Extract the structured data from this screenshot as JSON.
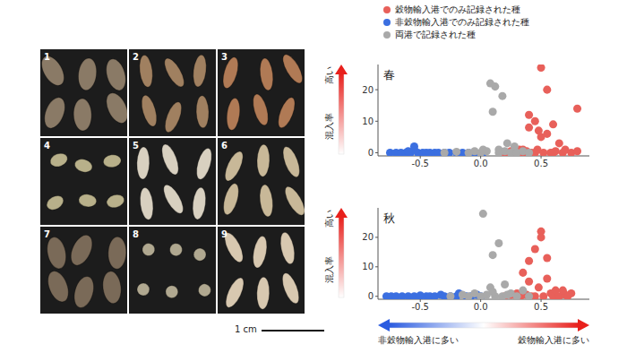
{
  "chart_data": [
    {
      "type": "scatter",
      "title": "春",
      "y_label": "混入率",
      "y_arrow_label": "高い",
      "legend": "top",
      "xlim": [
        -0.85,
        0.9
      ],
      "xticks": [
        -0.5,
        {
          "value": 0,
          "label": "0.0"
        },
        0.5
      ],
      "ylim": [
        -1,
        28
      ],
      "yticks": [
        0,
        10,
        20
      ],
      "series": [
        {
          "name": "穀物輸入港でのみ記録された種",
          "color": "#e8605a",
          "x": [
            0.2,
            0.25,
            0.3,
            0.32,
            0.35,
            0.38,
            0.4,
            0.42,
            0.45,
            0.47,
            0.48,
            0.5,
            0.52,
            0.55,
            0.55,
            0.58,
            0.6,
            0.62,
            0.65,
            0.68,
            0.7,
            0.75,
            0.8,
            0.8,
            0.5,
            0.45,
            0.4,
            0.6,
            0.35
          ],
          "y": [
            0,
            0.5,
            0,
            1,
            0,
            0.5,
            8,
            0,
            10,
            1,
            7,
            27,
            0,
            20,
            6,
            0,
            9,
            0.5,
            3,
            0,
            1,
            0,
            14,
            0.5,
            5,
            0,
            12,
            0,
            1
          ]
        },
        {
          "name": "非穀物輸入港でのみ記録された種",
          "color": "#3b6fe0",
          "x": [
            -0.75,
            -0.7,
            -0.66,
            -0.62,
            -0.58,
            -0.55,
            -0.52,
            -0.48,
            -0.45,
            -0.42,
            -0.38,
            -0.35,
            -0.3,
            -0.26,
            -0.2,
            -0.15,
            -0.1,
            -0.05,
            0.02,
            -0.55,
            -0.6
          ],
          "y": [
            0,
            0,
            0,
            0,
            0,
            1,
            0,
            0,
            0,
            0,
            0,
            0,
            0,
            0,
            0,
            0,
            0,
            0,
            0,
            2,
            0.5
          ]
        },
        {
          "name": "両港で記録された種",
          "color": "#a9a9a9",
          "x": [
            -0.3,
            -0.2,
            -0.1,
            -0.05,
            0,
            0.05,
            0.08,
            0.1,
            0.12,
            0.15,
            0.18,
            0.2,
            0.22,
            0.25,
            0.28,
            0.3,
            0.35,
            0.4,
            0.02,
            0.15
          ],
          "y": [
            0,
            0.3,
            0,
            0.5,
            0,
            0.5,
            22,
            13,
            21,
            1,
            18,
            0.5,
            3,
            0,
            2,
            0,
            0.5,
            0,
            1,
            0
          ]
        }
      ]
    },
    {
      "type": "scatter",
      "title": "秋",
      "y_label": "混入率",
      "y_arrow_label": "高い",
      "x_arrow_labels": [
        "非穀物輸入港に多い",
        "穀物輸入港に多い"
      ],
      "xlim": [
        -0.85,
        0.9
      ],
      "xticks": [
        -0.5,
        {
          "value": 0,
          "label": "0.0"
        },
        0.5
      ],
      "ylim": [
        -1,
        30
      ],
      "yticks": [
        0,
        10,
        20
      ],
      "series": [
        {
          "name": "穀物輸入港でのみ記録された種",
          "color": "#e8605a",
          "x": [
            0.2,
            0.25,
            0.3,
            0.33,
            0.35,
            0.38,
            0.4,
            0.42,
            0.45,
            0.48,
            0.5,
            0.52,
            0.55,
            0.55,
            0.58,
            0.6,
            0.62,
            0.65,
            0.7,
            0.72,
            0.75,
            0.5,
            0.45,
            0.4,
            0.3,
            0.68
          ],
          "y": [
            0,
            0.5,
            1,
            0,
            8,
            0.5,
            12,
            0,
            16,
            3,
            22,
            0,
            13,
            6,
            1,
            0,
            2,
            0,
            0.5,
            0,
            1,
            20,
            0,
            5,
            0,
            2
          ]
        },
        {
          "name": "非穀物輸入港でのみ記録された種",
          "color": "#3b6fe0",
          "x": [
            -0.78,
            -0.74,
            -0.7,
            -0.65,
            -0.6,
            -0.55,
            -0.5,
            -0.45,
            -0.42,
            -0.38,
            -0.33,
            -0.3,
            -0.25,
            -0.2,
            -0.18,
            -0.12,
            -0.08,
            -0.03,
            0.0,
            -0.5
          ],
          "y": [
            0,
            0,
            0,
            0,
            0,
            0,
            0,
            0,
            0,
            0,
            0.5,
            0,
            0,
            0,
            1,
            0,
            0,
            0.5,
            0,
            0.3
          ]
        },
        {
          "name": "両港で記録された種",
          "color": "#a9a9a9",
          "x": [
            -0.25,
            -0.15,
            -0.1,
            -0.05,
            0,
            0.02,
            0.05,
            0.08,
            0.1,
            0.12,
            0.15,
            0.18,
            0.2,
            0.25,
            0.3,
            0.35,
            0.4,
            0.1,
            0.22
          ],
          "y": [
            0,
            0.5,
            0,
            1,
            0,
            28,
            0.5,
            3,
            14,
            0,
            18,
            0,
            4,
            1,
            0,
            2,
            0,
            1.5,
            0.5
          ]
        }
      ]
    }
  ],
  "photos": {
    "labels": [
      "1",
      "2",
      "3",
      "4",
      "5",
      "6",
      "7",
      "8",
      "9"
    ],
    "scale_bar": "1 cm"
  }
}
